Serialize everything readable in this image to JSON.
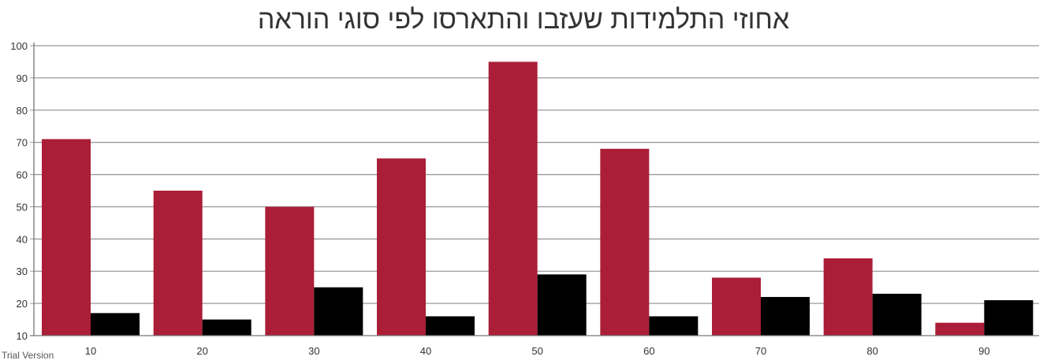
{
  "watermark": "Trial Version",
  "chart_data": {
    "type": "bar",
    "title": "אחוזי התלמידות שעזבו והתארסו לפי סוגי הוראה",
    "xlabel": "",
    "ylabel": "",
    "categories": [
      "10",
      "20",
      "30",
      "40",
      "50",
      "60",
      "70",
      "80",
      "90"
    ],
    "series": [
      {
        "values": [
          71,
          55,
          50,
          65,
          95,
          68,
          28,
          34,
          14
        ],
        "color": "#ab1e37"
      },
      {
        "values": [
          17,
          15,
          25,
          16,
          29,
          16,
          22,
          23,
          21
        ],
        "color": "#000000"
      }
    ],
    "ylim": [
      10,
      100
    ],
    "yticks": [
      10,
      20,
      30,
      40,
      50,
      60,
      70,
      80,
      90,
      100
    ],
    "grid": true,
    "legend": "none"
  }
}
